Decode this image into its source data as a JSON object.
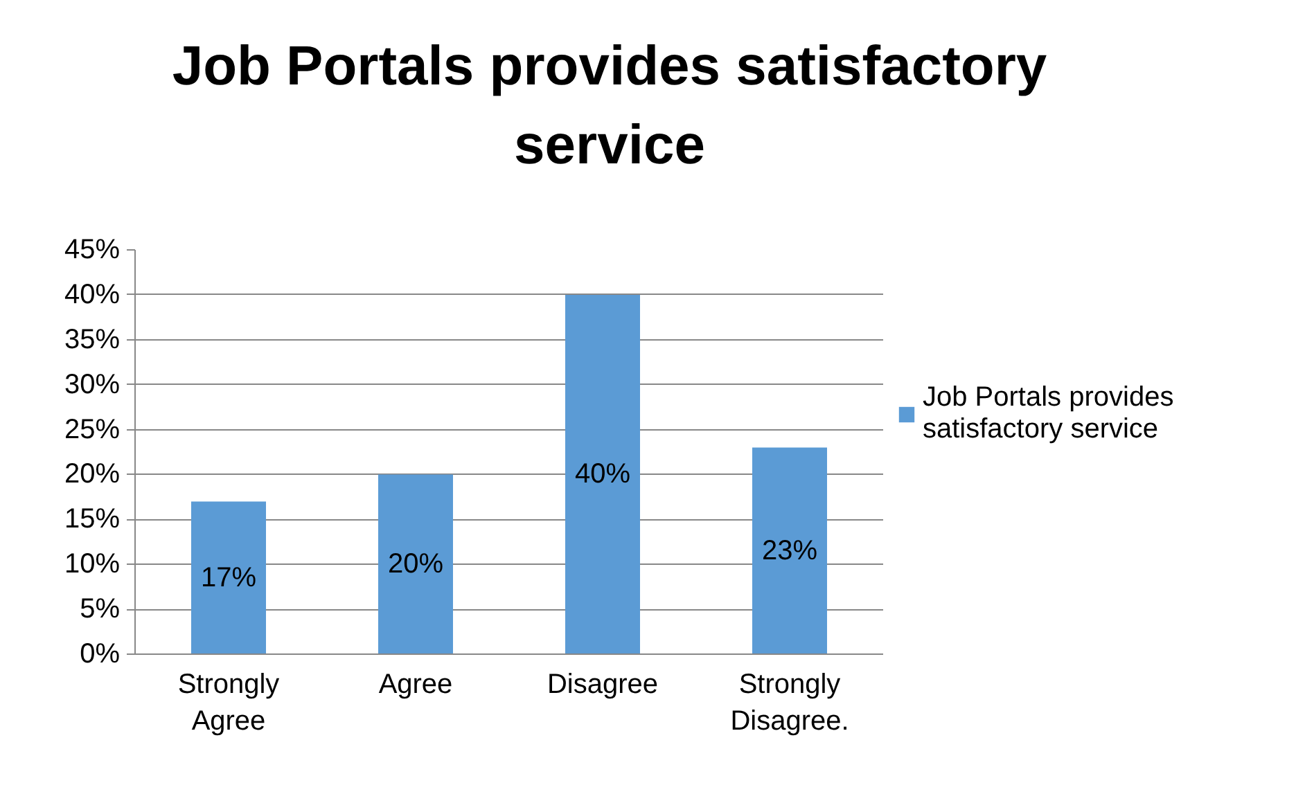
{
  "chart_data": {
    "type": "bar",
    "title": "Job Portals provides satisfactory service",
    "categories": [
      "Strongly Agree",
      "Agree",
      "Disagree",
      "Strongly Disagree."
    ],
    "series": [
      {
        "name": "Job Portals provides satisfactory service",
        "color": "#5b9bd5",
        "values": [
          17,
          20,
          40,
          23
        ],
        "value_labels": [
          "17%",
          "20%",
          "40%",
          "23%"
        ]
      }
    ],
    "ylim": [
      0,
      45
    ],
    "yticks": [
      {
        "value": 0,
        "label": "0%"
      },
      {
        "value": 5,
        "label": "5%"
      },
      {
        "value": 10,
        "label": "10%"
      },
      {
        "value": 15,
        "label": "15%"
      },
      {
        "value": 20,
        "label": "20%"
      },
      {
        "value": 25,
        "label": "25%"
      },
      {
        "value": 30,
        "label": "30%"
      },
      {
        "value": 35,
        "label": "35%"
      },
      {
        "value": 40,
        "label": "40%"
      },
      {
        "value": 45,
        "label": "45%"
      }
    ],
    "grid": "y",
    "legend": "right"
  }
}
